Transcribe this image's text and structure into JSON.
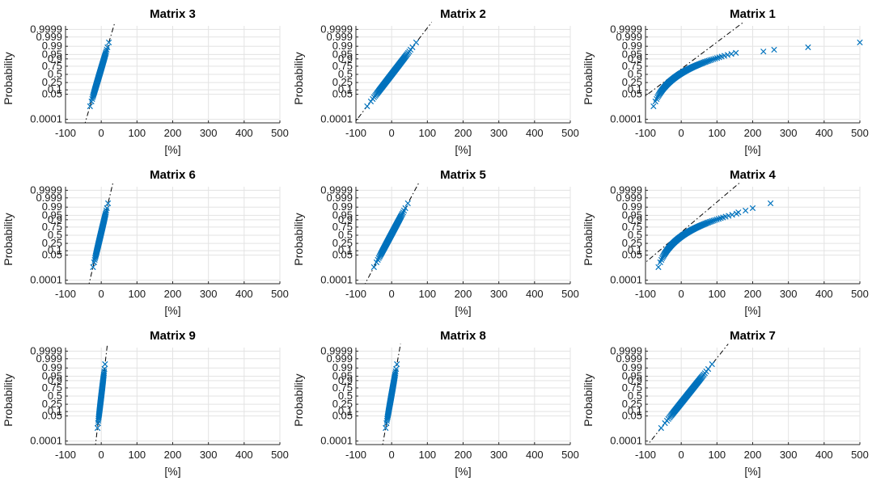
{
  "figure": {
    "colors": {
      "marker": "#0072BD",
      "reference_line": "#000000",
      "grid": "#e3e3e3"
    }
  },
  "chart_data": [
    {
      "type": "scatter",
      "title": "Matrix 3",
      "xlabel": "[%]",
      "ylabel": "Probability",
      "xlim": [
        -100,
        500
      ],
      "x_ticks": [
        "-100",
        "0",
        "100",
        "200",
        "300",
        "400",
        "500"
      ],
      "y_ticks": [
        "0.0001",
        "0.05",
        "0.1",
        "0.25",
        "0.5",
        "0.75",
        "0.9",
        "0.95",
        "0.99",
        "0.999",
        "0.9999"
      ],
      "y_scale": "normal-probability",
      "grid": true,
      "series": [
        {
          "marker": "x",
          "mean": -5,
          "std": 10,
          "n": 120,
          "x_range": [
            -40,
            18
          ],
          "reference_line": "dash-dot"
        }
      ]
    },
    {
      "type": "scatter",
      "title": "Matrix 2",
      "xlabel": "[%]",
      "ylabel": "Probability",
      "xlim": [
        -100,
        500
      ],
      "x_ticks": [
        "-100",
        "0",
        "100",
        "200",
        "300",
        "400",
        "500"
      ],
      "y_ticks": [
        "0.0001",
        "0.05",
        "0.1",
        "0.25",
        "0.5",
        "0.75",
        "0.9",
        "0.95",
        "0.99",
        "0.999",
        "0.9999"
      ],
      "y_scale": "normal-probability",
      "grid": true,
      "series": [
        {
          "marker": "x",
          "mean": 0,
          "std": 26,
          "n": 120,
          "x_range": [
            -55,
            68
          ],
          "reference_line": "dash-dot"
        }
      ]
    },
    {
      "type": "scatter",
      "title": "Matrix 1",
      "xlabel": "[%]",
      "ylabel": "Probability",
      "xlim": [
        -100,
        500
      ],
      "x_ticks": [
        "-100",
        "0",
        "100",
        "200",
        "300",
        "400",
        "500"
      ],
      "y_ticks": [
        "0.0001",
        "0.05",
        "0.1",
        "0.25",
        "0.5",
        "0.75",
        "0.9",
        "0.95",
        "0.99",
        "0.999",
        "0.9999"
      ],
      "y_scale": "normal-probability",
      "grid": true,
      "series": [
        {
          "marker": "x",
          "mean": -20,
          "std": 45,
          "n": 120,
          "x_range": [
            -90,
            500
          ],
          "skewed": true,
          "upper_tail_x": [
            230,
            260,
            355,
            500
          ],
          "reference_line": "dash-dot"
        }
      ]
    },
    {
      "type": "scatter",
      "title": "Matrix 6",
      "xlabel": "[%]",
      "ylabel": "Probability",
      "xlim": [
        -100,
        500
      ],
      "x_ticks": [
        "-100",
        "0",
        "100",
        "200",
        "300",
        "400",
        "500"
      ],
      "y_ticks": [
        "0.0001",
        "0.05",
        "0.1",
        "0.25",
        "0.5",
        "0.75",
        "0.9",
        "0.95",
        "0.99",
        "0.999",
        "0.9999"
      ],
      "y_scale": "normal-probability",
      "grid": true,
      "series": [
        {
          "marker": "x",
          "mean": -2,
          "std": 8,
          "n": 120,
          "x_range": [
            -22,
            16
          ],
          "reference_line": "dash-dot"
        }
      ]
    },
    {
      "type": "scatter",
      "title": "Matrix 5",
      "xlabel": "[%]",
      "ylabel": "Probability",
      "xlim": [
        -100,
        500
      ],
      "x_ticks": [
        "-100",
        "0",
        "100",
        "200",
        "300",
        "400",
        "500"
      ],
      "y_ticks": [
        "0.0001",
        "0.05",
        "0.1",
        "0.25",
        "0.5",
        "0.75",
        "0.9",
        "0.95",
        "0.99",
        "0.999",
        "0.9999"
      ],
      "y_scale": "normal-probability",
      "grid": true,
      "series": [
        {
          "marker": "x",
          "mean": -2,
          "std": 18,
          "n": 120,
          "x_range": [
            -40,
            50
          ],
          "reference_line": "dash-dot"
        }
      ]
    },
    {
      "type": "scatter",
      "title": "Matrix 4",
      "xlabel": "[%]",
      "ylabel": "Probability",
      "xlim": [
        -100,
        500
      ],
      "x_ticks": [
        "-100",
        "0",
        "100",
        "200",
        "300",
        "400",
        "500"
      ],
      "y_ticks": [
        "0.0001",
        "0.05",
        "0.1",
        "0.25",
        "0.5",
        "0.75",
        "0.9",
        "0.95",
        "0.99",
        "0.999",
        "0.9999"
      ],
      "y_scale": "normal-probability",
      "grid": true,
      "series": [
        {
          "marker": "x",
          "mean": -10,
          "std": 40,
          "n": 120,
          "x_range": [
            -75,
            250
          ],
          "skewed": true,
          "upper_tail_x": [
            160,
            180,
            200,
            250
          ],
          "reference_line": "dash-dot"
        }
      ]
    },
    {
      "type": "scatter",
      "title": "Matrix 9",
      "xlabel": "[%]",
      "ylabel": "Probability",
      "xlim": [
        -100,
        500
      ],
      "x_ticks": [
        "-100",
        "0",
        "100",
        "200",
        "300",
        "400",
        "500"
      ],
      "y_ticks": [
        "0.0001",
        "0.05",
        "0.1",
        "0.25",
        "0.5",
        "0.75",
        "0.9",
        "0.95",
        "0.99",
        "0.999",
        "0.9999"
      ],
      "y_scale": "normal-probability",
      "grid": true,
      "series": [
        {
          "marker": "x",
          "mean": 0,
          "std": 4,
          "n": 120,
          "x_range": [
            -10,
            10
          ],
          "reference_line": "dash-dot"
        }
      ]
    },
    {
      "type": "scatter",
      "title": "Matrix 8",
      "xlabel": "[%]",
      "ylabel": "Probability",
      "xlim": [
        -100,
        500
      ],
      "x_ticks": [
        "-100",
        "0",
        "100",
        "200",
        "300",
        "400",
        "500"
      ],
      "y_ticks": [
        "0.0001",
        "0.05",
        "0.1",
        "0.25",
        "0.5",
        "0.75",
        "0.9",
        "0.95",
        "0.99",
        "0.999",
        "0.9999"
      ],
      "y_scale": "normal-probability",
      "grid": true,
      "series": [
        {
          "marker": "x",
          "mean": -1,
          "std": 6,
          "n": 120,
          "x_range": [
            -16,
            12
          ],
          "reference_line": "dash-dot"
        }
      ]
    },
    {
      "type": "scatter",
      "title": "Matrix 7",
      "xlabel": "[%]",
      "ylabel": "Probability",
      "xlim": [
        -100,
        500
      ],
      "x_ticks": [
        "-100",
        "0",
        "100",
        "200",
        "300",
        "400",
        "500"
      ],
      "y_ticks": [
        "0.0001",
        "0.05",
        "0.1",
        "0.25",
        "0.5",
        "0.75",
        "0.9",
        "0.95",
        "0.99",
        "0.999",
        "0.9999"
      ],
      "y_scale": "normal-probability",
      "grid": true,
      "series": [
        {
          "marker": "x",
          "mean": 15,
          "std": 27,
          "n": 120,
          "x_range": [
            -35,
            80
          ],
          "reference_line": "dash-dot"
        }
      ]
    }
  ]
}
